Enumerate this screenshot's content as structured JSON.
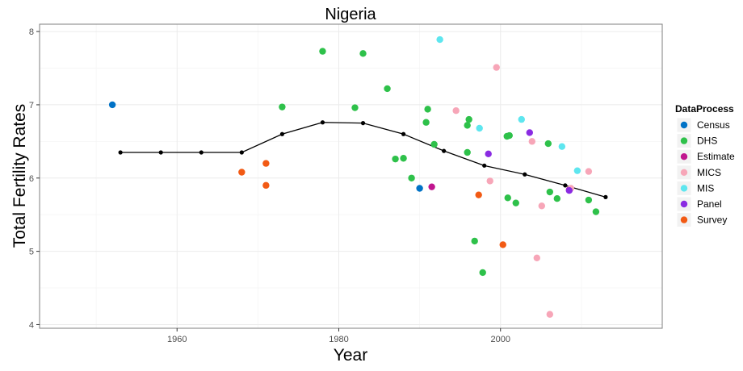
{
  "chart_data": {
    "type": "scatter",
    "title": "Nigeria",
    "xlabel": "Year",
    "ylabel": "Total Fertility Rates",
    "xlim": [
      1943,
      2020
    ],
    "ylim": [
      3.95,
      8.1
    ],
    "x_ticks": [
      1960,
      1980,
      2000
    ],
    "y_ticks": [
      4,
      5,
      6,
      7,
      8
    ],
    "grid": true,
    "legend": {
      "title": "DataProcess",
      "position": "right",
      "entries": [
        {
          "name": "Census",
          "color": "#0072c6"
        },
        {
          "name": "DHS",
          "color": "#2ec14a"
        },
        {
          "name": "Estimate",
          "color": "#c0158e"
        },
        {
          "name": "MICS",
          "color": "#f7a6b8"
        },
        {
          "name": "MIS",
          "color": "#5ee6ef"
        },
        {
          "name": "Panel",
          "color": "#8a2be2"
        },
        {
          "name": "Survey",
          "color": "#f25a14"
        }
      ]
    },
    "series": [
      {
        "name": "Census",
        "points": [
          [
            1952,
            7.0
          ],
          [
            1990,
            5.86
          ]
        ]
      },
      {
        "name": "DHS",
        "points": [
          [
            1973,
            6.97
          ],
          [
            1978,
            7.73
          ],
          [
            1982,
            6.96
          ],
          [
            1983,
            7.7
          ],
          [
            1986,
            7.22
          ],
          [
            1987,
            6.26
          ],
          [
            1988,
            6.27
          ],
          [
            1989,
            6.0
          ],
          [
            1990.8,
            6.76
          ],
          [
            1991,
            6.94
          ],
          [
            1991.8,
            6.46
          ],
          [
            1995.9,
            6.72
          ],
          [
            1996.1,
            6.8
          ],
          [
            1995.9,
            6.35
          ],
          [
            1996.8,
            5.14
          ],
          [
            1997.8,
            4.71
          ],
          [
            2000.8,
            6.57
          ],
          [
            2001.1,
            6.58
          ],
          [
            2000.9,
            5.73
          ],
          [
            2001.9,
            5.66
          ],
          [
            2005.9,
            6.47
          ],
          [
            2006.1,
            5.81
          ],
          [
            2007,
            5.72
          ],
          [
            2010.9,
            5.7
          ],
          [
            2011.8,
            5.54
          ]
        ]
      },
      {
        "name": "Estimate",
        "points": [
          [
            1991.5,
            5.88
          ],
          [
            2008.5,
            5.84
          ]
        ]
      },
      {
        "name": "MICS",
        "points": [
          [
            1994.5,
            6.92
          ],
          [
            1999.5,
            7.51
          ],
          [
            1998.7,
            5.96
          ],
          [
            2003.9,
            6.5
          ],
          [
            2004.5,
            4.91
          ],
          [
            2005.1,
            5.62
          ],
          [
            2006.1,
            4.14
          ],
          [
            2008.7,
            5.86
          ],
          [
            2010.9,
            6.09
          ]
        ]
      },
      {
        "name": "MIS",
        "points": [
          [
            1992.5,
            7.89
          ],
          [
            1997.4,
            6.68
          ],
          [
            2002.6,
            6.8
          ],
          [
            2007.6,
            6.43
          ],
          [
            2009.5,
            6.1
          ]
        ]
      },
      {
        "name": "Panel",
        "points": [
          [
            1998.5,
            6.33
          ],
          [
            2003.6,
            6.62
          ],
          [
            2008.5,
            5.83
          ]
        ]
      },
      {
        "name": "Survey",
        "points": [
          [
            1968,
            6.08
          ],
          [
            1971,
            6.2
          ],
          [
            1971,
            5.9
          ],
          [
            1997.3,
            5.77
          ],
          [
            2000.3,
            5.09
          ]
        ]
      }
    ],
    "trend_line": {
      "points": [
        [
          1953,
          6.35
        ],
        [
          1958,
          6.35
        ],
        [
          1963,
          6.35
        ],
        [
          1968,
          6.35
        ],
        [
          1973,
          6.6
        ],
        [
          1978,
          6.76
        ],
        [
          1983,
          6.75
        ],
        [
          1988,
          6.6
        ],
        [
          1993,
          6.37
        ],
        [
          1998,
          6.17
        ],
        [
          2003,
          6.05
        ],
        [
          2008,
          5.9
        ],
        [
          2013,
          5.74
        ]
      ]
    }
  }
}
